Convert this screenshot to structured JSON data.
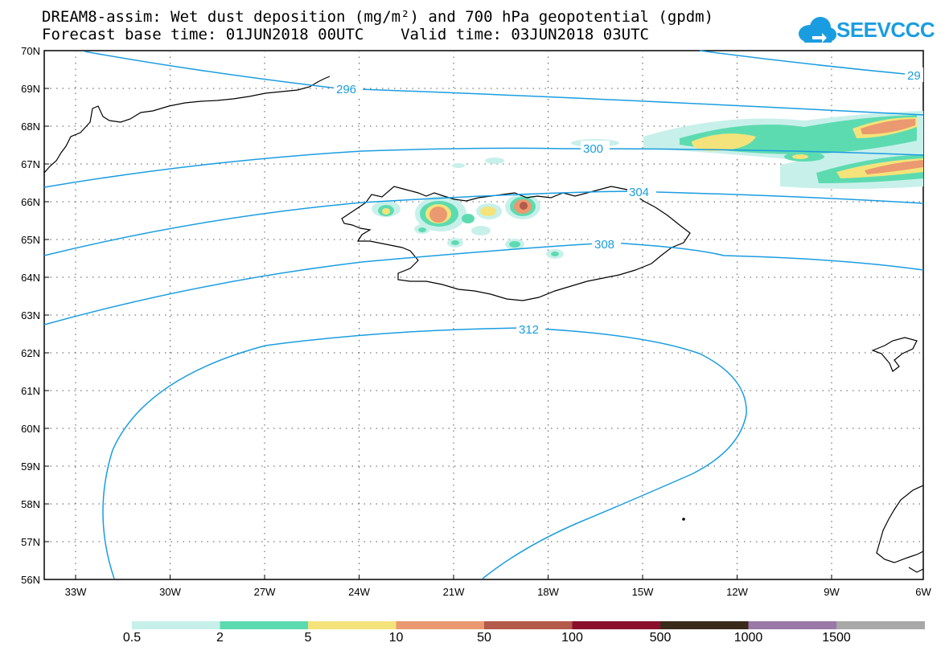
{
  "header": {
    "title_line1": "DREAM8-assim: Wet dust deposition (mg/m²) and 700 hPa geopotential (gpdm)",
    "title_line2": "Forecast base time: 01JUN2018 00UTC    Valid time: 03JUN2018 03UTC"
  },
  "logo": {
    "text": "SEEVCCC",
    "icon": "cloud-icon"
  },
  "map": {
    "lat_labels": [
      "70N",
      "69N",
      "68N",
      "67N",
      "66N",
      "65N",
      "64N",
      "63N",
      "62N",
      "61N",
      "60N",
      "59N",
      "58N",
      "57N",
      "56N"
    ],
    "lon_labels": [
      "33W",
      "30W",
      "27W",
      "24W",
      "21W",
      "18W",
      "15W",
      "12W",
      "9W",
      "6W"
    ],
    "contour_labels": [
      "296",
      "300",
      "304",
      "308",
      "312",
      "29"
    ],
    "contour_color": "#1a9de0"
  },
  "legend": {
    "labels": [
      "0.5",
      "2",
      "5",
      "10",
      "50",
      "100",
      "500",
      "1000",
      "1500"
    ],
    "colors": [
      "#c8f0ea",
      "#5ddbb0",
      "#f4e37a",
      "#ea9970",
      "#b45a4a",
      "#8a0f2c",
      "#3a2a1a",
      "#9a78a8",
      "#a8a8a8"
    ]
  }
}
